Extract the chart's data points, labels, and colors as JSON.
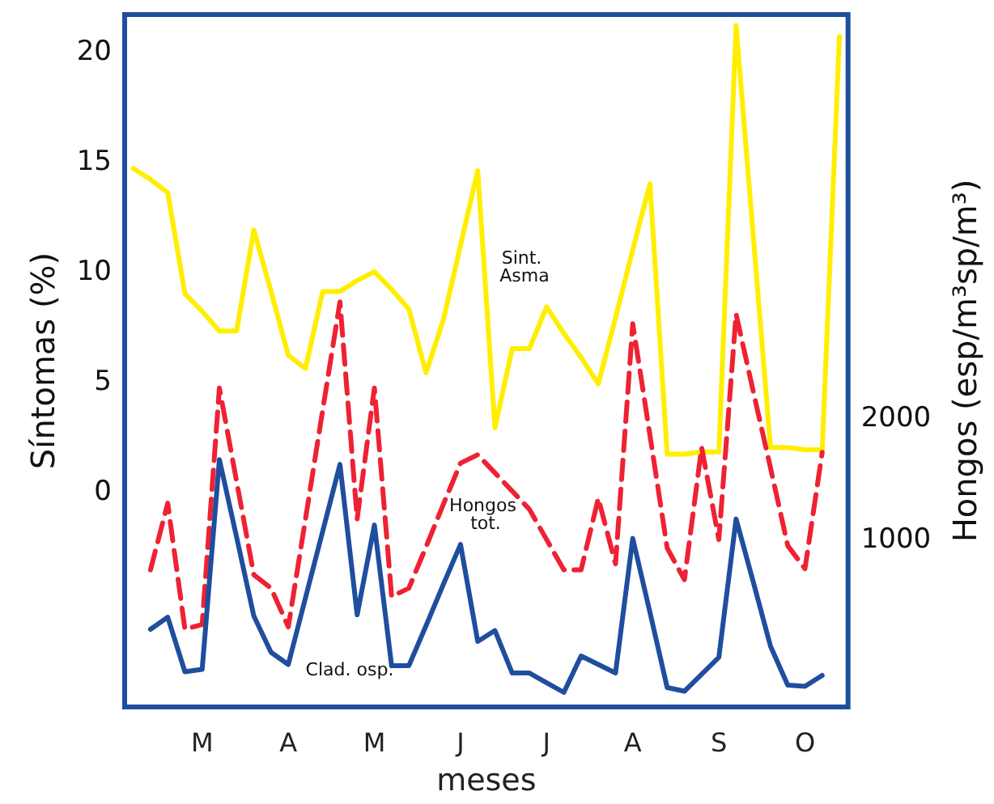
{
  "chart_data": {
    "type": "line",
    "xlabel": "meses",
    "ylabel": "Síntomas (%)",
    "y2label": "Hongos (esp/m³sp/m³)",
    "categories": [
      null,
      null,
      null,
      null,
      "M",
      null,
      null,
      null,
      null,
      "A",
      null,
      null,
      null,
      null,
      "M",
      null,
      null,
      null,
      null,
      "J",
      null,
      null,
      null,
      null,
      "J",
      null,
      null,
      null,
      null,
      "A",
      null,
      null,
      null,
      null,
      "S",
      null,
      null,
      null,
      null,
      "O",
      null,
      null
    ],
    "ylim": [
      -9.8,
      21.7
    ],
    "yticks": [
      0,
      5,
      10,
      15,
      20
    ],
    "y2lim": [
      -380,
      5330
    ],
    "y2ticks": [
      1000,
      2000
    ],
    "marker": "none",
    "series": [
      {
        "name": "Sint. Asma",
        "color": "#ffee00",
        "line_style": "solid",
        "values": [
          14.7,
          14.2,
          13.6,
          9.0,
          8.2,
          7.3,
          7.3,
          11.9,
          9.1,
          6.2,
          5.6,
          9.1,
          9.1,
          9.6,
          10.0,
          9.2,
          8.3,
          5.4,
          7.8,
          11.2,
          14.6,
          2.9,
          6.5,
          6.5,
          8.4,
          7.2,
          6.1,
          4.9,
          7.9,
          11.0,
          14.0,
          1.7,
          1.7,
          1.8,
          1.8,
          21.2,
          11.6,
          2.0,
          2.0,
          1.9,
          1.9,
          20.7
        ]
      },
      {
        "name": "Hongos tot.",
        "color": "#ee2233",
        "line_style": "dashed",
        "axis": "y2",
        "values": [
          null,
          750,
          1300,
          260,
          300,
          2250,
          1480,
          710,
          600,
          280,
          1170,
          2070,
          2960,
          1170,
          2250,
          530,
          600,
          940,
          1290,
          1630,
          1700,
          1550,
          1400,
          1250,
          1000,
          750,
          750,
          1340,
          800,
          2780,
          1860,
          930,
          670,
          1760,
          1000,
          2860,
          2220,
          1590,
          950,
          760,
          1720,
          null
        ]
      },
      {
        "name": "Clad. osp.",
        "color": "#1f4e9e",
        "line_style": "solid",
        "axis": "y2",
        "values": [
          null,
          260,
          360,
          -90,
          -70,
          1660,
          1020,
          370,
          70,
          -30,
          520,
          1070,
          1620,
          380,
          1120,
          -40,
          -40,
          290,
          630,
          960,
          160,
          250,
          -100,
          -100,
          -180,
          -260,
          40,
          -30,
          -100,
          1010,
          400,
          -220,
          -250,
          -110,
          30,
          1170,
          650,
          120,
          -200,
          -210,
          -120,
          null
        ]
      }
    ]
  }
}
